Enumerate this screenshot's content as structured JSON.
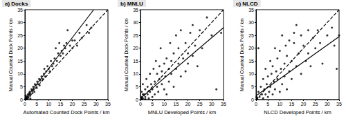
{
  "chart_data": [
    {
      "type": "scatter",
      "title": "a) Docks",
      "x_label": "Automated Counted Dock Points / km",
      "y_label": "Manual Counted Dock Points / km",
      "xlim": [
        0,
        35
      ],
      "ylim": [
        0,
        35
      ],
      "xticks": [
        0,
        5,
        10,
        15,
        20,
        25,
        30,
        35
      ],
      "yticks": [
        0,
        5,
        10,
        15,
        20,
        25,
        30,
        35
      ],
      "grid": false,
      "series": [
        {
          "type": "scatter",
          "color": "#000000",
          "marker": "circle",
          "x": [
            0.2,
            0.5,
            0.8,
            1,
            1.2,
            1.5,
            1.8,
            2,
            2.2,
            2.5,
            2.8,
            3,
            3.2,
            3.5,
            3.8,
            4,
            4.2,
            4.5,
            5,
            5.2,
            5.5,
            6,
            6.2,
            6.5,
            7,
            7.5,
            8,
            8.2,
            8.5,
            9,
            9.5,
            10,
            10.5,
            11,
            11.5,
            12,
            12.5,
            13,
            13.5,
            14,
            14.5,
            15,
            15.5,
            16,
            16.5,
            17,
            17.5,
            18,
            19,
            20,
            20,
            21,
            22,
            23,
            24,
            26,
            27,
            28,
            0.3,
            0.7,
            1.3,
            2.3
          ],
          "values": [
            0.3,
            0.8,
            1.2,
            0.5,
            2,
            1,
            2.5,
            3,
            1.5,
            2,
            4,
            3.5,
            2.5,
            5,
            4,
            3,
            6,
            5.5,
            4.5,
            7,
            6,
            8,
            5.5,
            7.5,
            9,
            8,
            10,
            12,
            9,
            11,
            13,
            12,
            11,
            15,
            13,
            14,
            16,
            20,
            15,
            18,
            22,
            17,
            19,
            18,
            21,
            20,
            22,
            27,
            21,
            23,
            20,
            23,
            21,
            26,
            24,
            29,
            26,
            28,
            1.5,
            0.2,
            0.6,
            0.4
          ]
        },
        {
          "type": "line",
          "line_style": "dashed",
          "color": "#000000",
          "x": [
            0,
            35
          ],
          "values": [
            0,
            35
          ]
        },
        {
          "type": "line",
          "line_style": "solid",
          "color": "#000000",
          "x": [
            0,
            29
          ],
          "values": [
            0,
            35
          ]
        }
      ]
    },
    {
      "type": "scatter",
      "title": "b) MNLU",
      "x_label": "MNLU Developed Points / km",
      "y_label": "Manual Counted Dock Points / km",
      "xlim": [
        0,
        35
      ],
      "ylim": [
        0,
        35
      ],
      "xticks": [
        0,
        5,
        10,
        15,
        20,
        25,
        30,
        35
      ],
      "yticks": [
        0,
        5,
        10,
        15,
        20,
        25,
        30,
        35
      ],
      "grid": false,
      "series": [
        {
          "type": "scatter",
          "color": "#000000",
          "marker": "circle",
          "x": [
            0.3,
            0.5,
            1,
            1,
            1.5,
            2,
            2,
            2.5,
            3,
            3,
            3.5,
            4,
            4,
            4.5,
            5,
            5,
            5.5,
            6,
            6,
            6.5,
            7,
            7,
            7.5,
            8,
            8,
            8.5,
            9,
            9,
            10,
            10,
            10.5,
            11,
            11,
            12,
            12,
            12.5,
            13,
            13,
            14,
            14,
            15,
            15,
            16,
            16,
            17,
            17,
            18,
            19,
            19,
            20,
            20,
            21,
            22,
            22,
            23,
            24,
            25,
            26,
            28,
            30,
            32,
            34,
            1,
            0.5,
            2
          ],
          "values": [
            1,
            3,
            0.5,
            6,
            2,
            1,
            4,
            8,
            2,
            5,
            0.5,
            3,
            10,
            6,
            1,
            4,
            12,
            2,
            7,
            15,
            5,
            10,
            3,
            13,
            8,
            20,
            6,
            11,
            4,
            14,
            9,
            16,
            2,
            12,
            7,
            22,
            15,
            10,
            18,
            5,
            25,
            12,
            14,
            20,
            9,
            27,
            16,
            22,
            11,
            18,
            14,
            26,
            17,
            29,
            21,
            13,
            27,
            20,
            32,
            25,
            4,
            26,
            2,
            0.3,
            0.2
          ]
        },
        {
          "type": "line",
          "line_style": "dashed",
          "color": "#000000",
          "x": [
            0,
            35
          ],
          "values": [
            0,
            35
          ]
        },
        {
          "type": "line",
          "line_style": "solid",
          "color": "#000000",
          "x": [
            0,
            35
          ],
          "values": [
            0.5,
            28
          ]
        }
      ]
    },
    {
      "type": "scatter",
      "title": "c) NLCD",
      "x_label": "NLCD Developed Points / km",
      "y_label": "Manual Counted Dock Points / km",
      "xlim": [
        0,
        35
      ],
      "ylim": [
        0,
        35
      ],
      "xticks": [
        0,
        5,
        10,
        15,
        20,
        25,
        30,
        35
      ],
      "yticks": [
        0,
        5,
        10,
        15,
        20,
        25,
        30,
        35
      ],
      "grid": false,
      "series": [
        {
          "type": "scatter",
          "color": "#000000",
          "marker": "circle",
          "x": [
            0.2,
            0.5,
            1,
            1,
            1.5,
            2,
            2.5,
            3,
            3,
            3.5,
            4,
            4,
            4.5,
            5,
            5,
            5.5,
            6,
            6,
            6.5,
            7,
            7,
            7.5,
            8,
            8,
            8.5,
            9,
            9,
            10,
            10,
            10.5,
            11,
            11,
            12,
            12,
            12.5,
            13,
            13,
            14,
            14,
            15,
            15,
            16,
            16,
            17,
            17,
            18,
            19,
            19,
            20,
            21,
            22,
            22,
            23,
            24,
            25,
            26,
            27,
            28,
            30,
            32,
            33,
            34,
            35
          ],
          "values": [
            1,
            0.3,
            3,
            20,
            1,
            5,
            2,
            8,
            0.5,
            4,
            12,
            2,
            6,
            1,
            9,
            3,
            15,
            5,
            10,
            2,
            13,
            7,
            20,
            4,
            11,
            16,
            8,
            3,
            19,
            12,
            25,
            6,
            14,
            9,
            21,
            17,
            4,
            11,
            23,
            15,
            8,
            22,
            26,
            13,
            29,
            18,
            10,
            25,
            21,
            15,
            27,
            18,
            13,
            24,
            20,
            27,
            22,
            14,
            25,
            28,
            21,
            12,
            25
          ]
        },
        {
          "type": "line",
          "line_style": "dashed",
          "color": "#000000",
          "x": [
            0,
            35
          ],
          "values": [
            0,
            35
          ]
        },
        {
          "type": "line",
          "line_style": "solid",
          "color": "#000000",
          "x": [
            0,
            35
          ],
          "values": [
            1.5,
            24.5
          ]
        }
      ]
    }
  ]
}
